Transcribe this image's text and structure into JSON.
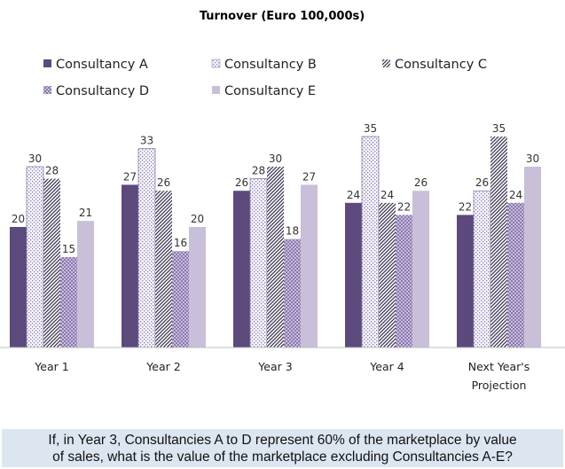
{
  "question": {
    "line1": "If, in Year 3, Consultancies A to D represent 60% of the marketplace by value",
    "line2": "of sales, what is the value of the marketplace excluding Consultancies A-E?"
  },
  "chart_data": {
    "type": "bar",
    "title": "Turnover (Euro 100,000s)",
    "categories": [
      [
        "Year 1"
      ],
      [
        "Year 2"
      ],
      [
        "Year 3"
      ],
      [
        "Year 4"
      ],
      [
        "Next Year's",
        "Projection"
      ]
    ],
    "series": [
      {
        "name": "Consultancy  A",
        "values": [
          20,
          27,
          26,
          24,
          22
        ],
        "pattern": "solid",
        "color": "#5c4a7d"
      },
      {
        "name": "Consultancy  B",
        "values": [
          30,
          33,
          28,
          35,
          26
        ],
        "pattern": "dots",
        "color": "#b3a6cc"
      },
      {
        "name": "Consultancy  C",
        "values": [
          28,
          26,
          30,
          24,
          35
        ],
        "pattern": "diagonal",
        "color": "#3d3550"
      },
      {
        "name": "Consultancy  D",
        "values": [
          15,
          16,
          18,
          22,
          24
        ],
        "pattern": "grid",
        "color": "#9a88ba"
      },
      {
        "name": "Consultancy  E",
        "values": [
          21,
          20,
          27,
          26,
          30
        ],
        "pattern": "light",
        "color": "#c9bfd9"
      }
    ],
    "ylim": [
      0,
      40
    ],
    "xlabel": "",
    "ylabel": "",
    "legend": "top",
    "grid": false
  }
}
